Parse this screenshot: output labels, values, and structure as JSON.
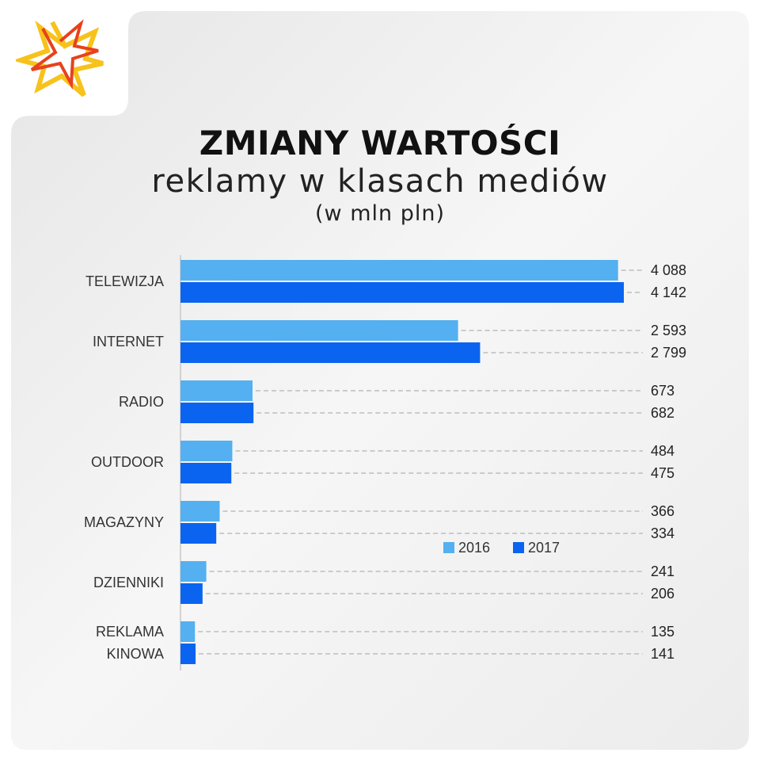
{
  "header": {
    "title": "ZMIANY WARTOŚCI",
    "subtitle": "reklamy w klasach mediów",
    "unit": "(w mln pln)"
  },
  "colors": {
    "series_2016": "#54b0f0",
    "series_2017": "#0a64f0",
    "background_panel": "#ececec",
    "leader_line": "#bdbdbd"
  },
  "chart_data": {
    "type": "bar",
    "orientation": "horizontal",
    "categories": [
      [
        "TELEWIZJA"
      ],
      [
        "INTERNET"
      ],
      [
        "RADIO"
      ],
      [
        "OUTDOOR"
      ],
      [
        "MAGAZYNY"
      ],
      [
        "DZIENNIKI"
      ],
      [
        "REKLAMA",
        "KINOWA"
      ]
    ],
    "series": [
      {
        "name": "2016",
        "color": "#54b0f0",
        "values": [
          4088,
          2593,
          673,
          484,
          366,
          241,
          135
        ]
      },
      {
        "name": "2017",
        "color": "#0a64f0",
        "values": [
          4142,
          2799,
          682,
          475,
          334,
          206,
          141
        ]
      }
    ],
    "value_labels": [
      [
        "4 088",
        "2 593",
        "673",
        "484",
        "366",
        "241",
        "135"
      ],
      [
        "4 142",
        "2 799",
        "682",
        "475",
        "334",
        "206",
        "141"
      ]
    ],
    "xlim": [
      0,
      4142
    ],
    "grid": false,
    "legend": {
      "position": "bottom-right",
      "entries": [
        "2016",
        "2017"
      ]
    }
  }
}
